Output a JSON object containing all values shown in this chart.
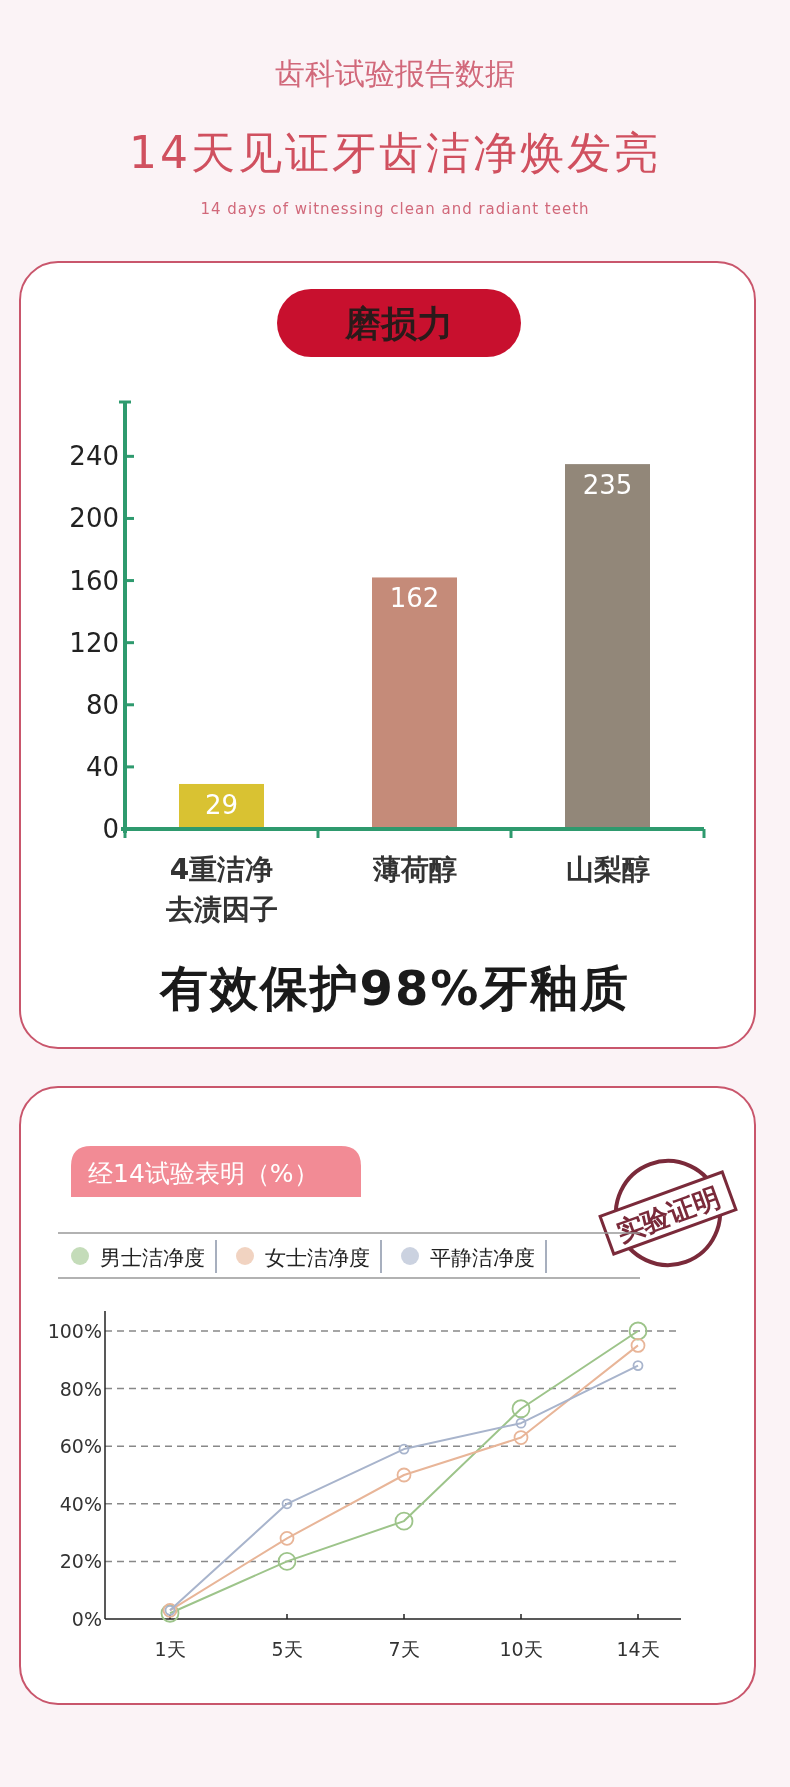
{
  "chart_data": [
    {
      "type": "bar",
      "title": "磨损力",
      "annotations": [
        "齿科试验报告数据",
        "14天见证牙齿洁净焕发亮",
        "14 days of witnessing clean and radiant teeth",
        "有效保护98%牙釉质"
      ],
      "categories": [
        "4重洁净去渍因子",
        "薄荷醇",
        "山梨醇"
      ],
      "values": [
        29,
        162,
        235
      ],
      "colors": [
        "#d9c232",
        "#c58b79",
        "#928779"
      ],
      "ylim": [
        0,
        275
      ],
      "yticks": [
        0,
        40,
        80,
        120,
        160,
        200,
        240
      ],
      "data_labels": true,
      "grid": false
    },
    {
      "type": "line",
      "title": "经14试验表明（%）",
      "annotations": [
        "实验证明"
      ],
      "categories": [
        "1天",
        "5天",
        "7天",
        "10天",
        "14天"
      ],
      "series": [
        {
          "name": "男士洁净度",
          "color": "#9dc48a",
          "values": [
            2,
            20,
            34,
            73,
            100
          ]
        },
        {
          "name": "女士洁净度",
          "color": "#e8b598",
          "values": [
            3,
            28,
            50,
            63,
            95
          ]
        },
        {
          "name": "平静洁净度",
          "color": "#a8b4cc",
          "values": [
            3,
            40,
            59,
            68,
            88
          ]
        }
      ],
      "ylim": [
        0,
        100
      ],
      "yticks": [
        {
          "value": 0,
          "label": "0%"
        },
        {
          "value": 20,
          "label": "20%"
        },
        {
          "value": 40,
          "label": "40%"
        },
        {
          "value": 60,
          "label": "60%"
        },
        {
          "value": 80,
          "label": "80%"
        },
        {
          "value": 100,
          "label": "100%"
        }
      ],
      "grid": "y",
      "legend": "top",
      "marker": "circle",
      "line_style": "solid"
    }
  ]
}
